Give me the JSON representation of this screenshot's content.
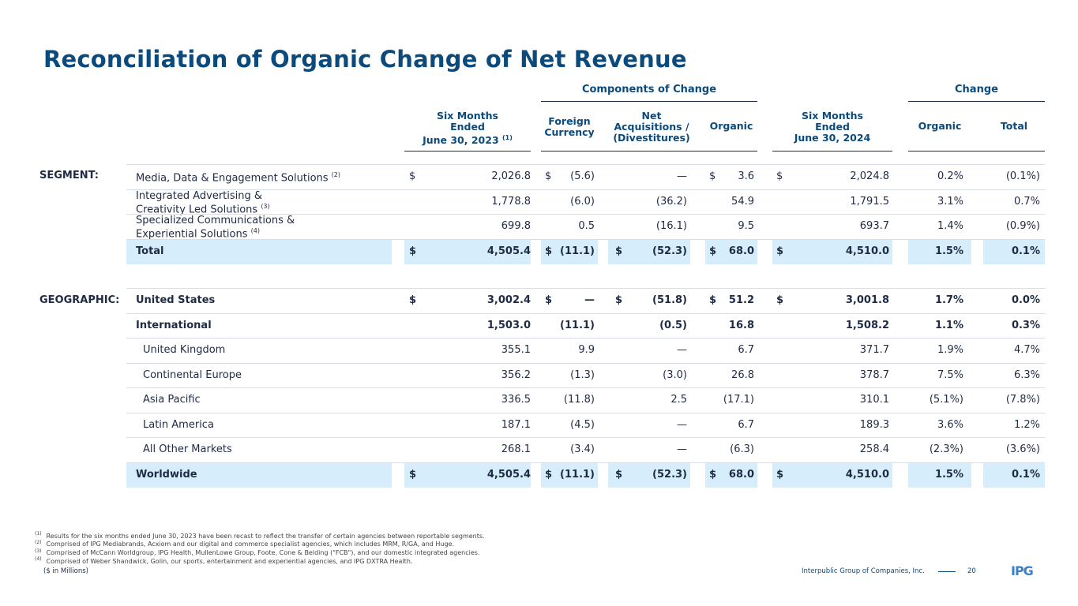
{
  "title": "Reconciliation of Organic Change of Net Revenue",
  "groups": {
    "components": "Components of Change",
    "change": "Change"
  },
  "columns": {
    "h2023": [
      "Six Months",
      "Ended",
      "June 30, 2023"
    ],
    "h2023_note": "(1)",
    "fx": [
      "Foreign",
      "Currency"
    ],
    "acq": [
      "Net",
      "Acquisitions /",
      "(Divestitures)"
    ],
    "organic": "Organic",
    "h2024": [
      "Six Months",
      "Ended",
      "June 30, 2024"
    ],
    "chg_organic": "Organic",
    "chg_total": "Total"
  },
  "segment_label": "SEGMENT:",
  "geographic_label": "GEOGRAPHIC:",
  "segment_rows": [
    {
      "label": [
        "Media, Data & Engagement Solutions"
      ],
      "note": "(2)",
      "dollar": true,
      "v2023": "2,026.8",
      "fx": "(5.6)",
      "acq": "—",
      "org": "3.6",
      "v2024": "2,024.8",
      "org_pct": "0.2%",
      "tot_pct": "(0.1%)"
    },
    {
      "label": [
        "Integrated Advertising &",
        "Creativity Led Solutions"
      ],
      "note": "(3)",
      "dollar": false,
      "v2023": "1,778.8",
      "fx": "(6.0)",
      "acq": "(36.2)",
      "org": "54.9",
      "v2024": "1,791.5",
      "org_pct": "3.1%",
      "tot_pct": "0.7%"
    },
    {
      "label": [
        "Specialized Communications &",
        "Experiential Solutions"
      ],
      "note": "(4)",
      "dollar": false,
      "v2023": "699.8",
      "fx": "0.5",
      "acq": "(16.1)",
      "org": "9.5",
      "v2024": "693.7",
      "org_pct": "1.4%",
      "tot_pct": "(0.9%)"
    }
  ],
  "segment_total": {
    "label": "Total",
    "v2023": "4,505.4",
    "fx": "(11.1)",
    "acq": "(52.3)",
    "org": "68.0",
    "v2024": "4,510.0",
    "org_pct": "1.5%",
    "tot_pct": "0.1%"
  },
  "geo_rows": [
    {
      "label": "United States",
      "bold": true,
      "indent": false,
      "dollar": true,
      "v2023": "3,002.4",
      "fx": "—",
      "acq": "(51.8)",
      "org": "51.2",
      "v2024": "3,001.8",
      "org_pct": "1.7%",
      "tot_pct": "0.0%"
    },
    {
      "label": "International",
      "bold": true,
      "indent": false,
      "dollar": false,
      "v2023": "1,503.0",
      "fx": "(11.1)",
      "acq": "(0.5)",
      "org": "16.8",
      "v2024": "1,508.2",
      "org_pct": "1.1%",
      "tot_pct": "0.3%"
    },
    {
      "label": "United Kingdom",
      "bold": false,
      "indent": true,
      "dollar": false,
      "v2023": "355.1",
      "fx": "9.9",
      "acq": "—",
      "org": "6.7",
      "v2024": "371.7",
      "org_pct": "1.9%",
      "tot_pct": "4.7%"
    },
    {
      "label": "Continental Europe",
      "bold": false,
      "indent": true,
      "dollar": false,
      "v2023": "356.2",
      "fx": "(1.3)",
      "acq": "(3.0)",
      "org": "26.8",
      "v2024": "378.7",
      "org_pct": "7.5%",
      "tot_pct": "6.3%"
    },
    {
      "label": "Asia Pacific",
      "bold": false,
      "indent": true,
      "dollar": false,
      "v2023": "336.5",
      "fx": "(11.8)",
      "acq": "2.5",
      "org": "(17.1)",
      "v2024": "310.1",
      "org_pct": "(5.1%)",
      "tot_pct": "(7.8%)"
    },
    {
      "label": "Latin America",
      "bold": false,
      "indent": true,
      "dollar": false,
      "v2023": "187.1",
      "fx": "(4.5)",
      "acq": "—",
      "org": "6.7",
      "v2024": "189.3",
      "org_pct": "3.6%",
      "tot_pct": "1.2%"
    },
    {
      "label": "All Other Markets",
      "bold": false,
      "indent": true,
      "dollar": false,
      "v2023": "268.1",
      "fx": "(3.4)",
      "acq": "—",
      "org": "(6.3)",
      "v2024": "258.4",
      "org_pct": "(2.3%)",
      "tot_pct": "(3.6%)"
    }
  ],
  "geo_total": {
    "label": "Worldwide",
    "v2023": "4,505.4",
    "fx": "(11.1)",
    "acq": "(52.3)",
    "org": "68.0",
    "v2024": "4,510.0",
    "org_pct": "1.5%",
    "tot_pct": "0.1%"
  },
  "currency_symbol": "$",
  "footnotes": [
    {
      "mark": "(1)",
      "text": "Results for the six months ended June 30, 2023 have been recast to reflect the transfer of certain agencies between reportable segments."
    },
    {
      "mark": "(2)",
      "text": "Comprised of IPG Mediabrands, Acxiom and our digital and commerce specialist agencies, which includes MRM, R/GA, and Huge."
    },
    {
      "mark": "(3)",
      "text": "Comprised of McCann Worldgroup, IPG Health, MullenLowe Group, Foote, Cone & Belding (\"FCB\"), and our domestic integrated agencies."
    },
    {
      "mark": "(4)",
      "text": "Comprised of Weber Shandwick, Golin, our sports, entertainment and experiential agencies, and IPG DXTRA Health."
    }
  ],
  "units_note": "($ in Millions)",
  "company": "Interpublic Group of Companies, Inc.",
  "page_number": "20",
  "logo_text": "IPG"
}
